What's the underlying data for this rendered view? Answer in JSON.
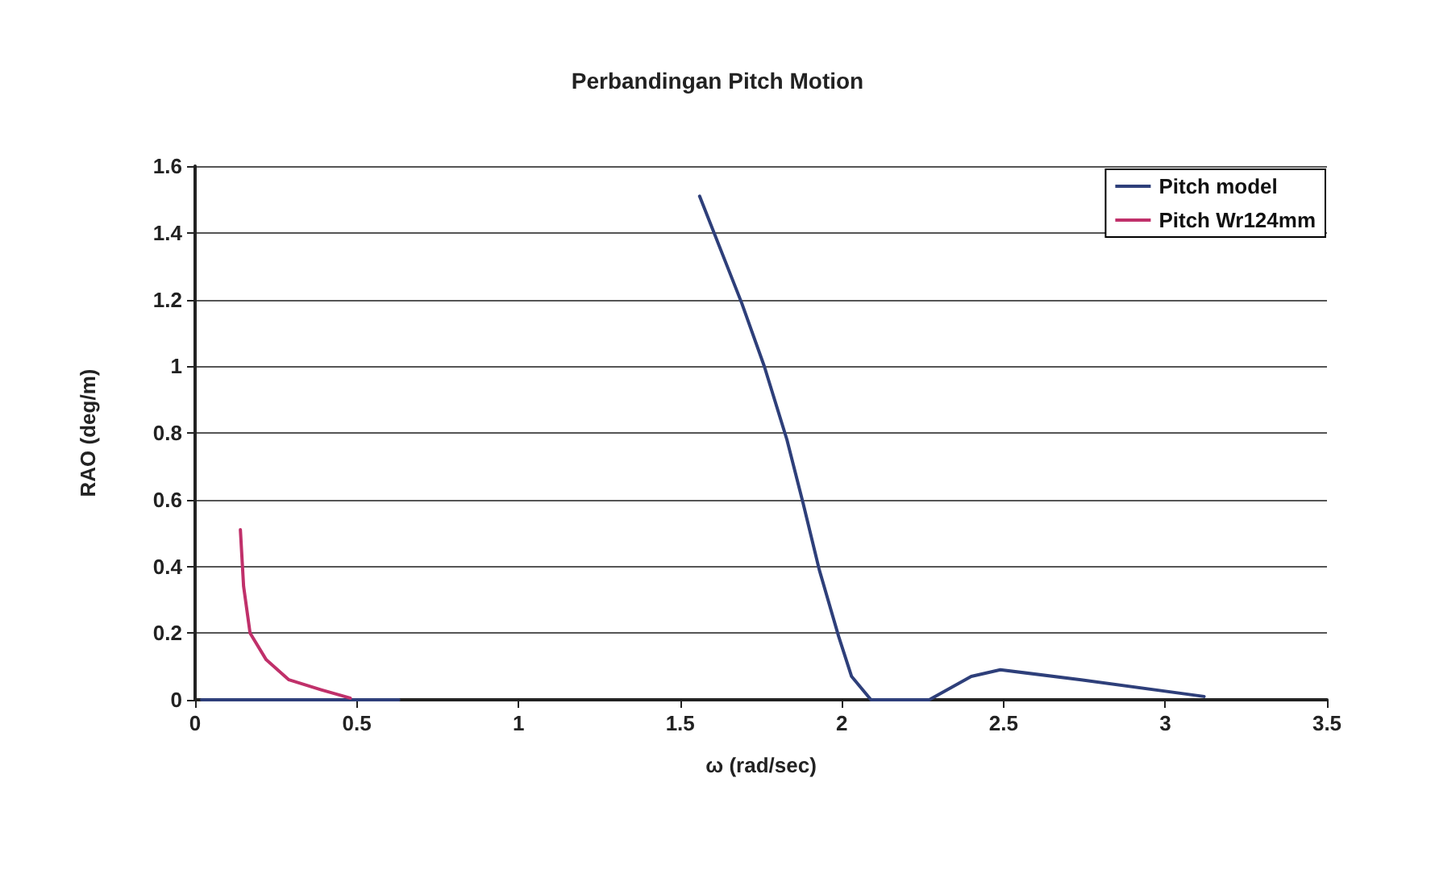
{
  "chart_data": {
    "type": "line",
    "title": "Perbandingan Pitch Motion",
    "xlabel": "ω (rad/sec)",
    "ylabel": "RAO (deg/m)",
    "xlim": [
      0,
      3.5
    ],
    "xticks": [
      0,
      0.5,
      1,
      1.5,
      2,
      2.5,
      3,
      3.5
    ],
    "ylim": [
      0,
      1.6
    ],
    "yticks": [
      0,
      0.2,
      0.4,
      0.6,
      0.8,
      1,
      1.2,
      1.4,
      1.6
    ],
    "grid": "y",
    "legend": "top right",
    "marker": "none",
    "line_style": "solid",
    "series": [
      {
        "name": "Pitch model",
        "color": "#2e3f7a",
        "x": [
          0.02,
          0.63,
          1.1,
          1.56,
          1.69,
          1.76,
          1.83,
          1.88,
          1.93,
          1.99,
          2.03,
          2.09,
          2.27,
          2.4,
          2.49,
          2.74,
          3.12
        ],
        "values": [
          0,
          0,
          null,
          1.51,
          1.19,
          1.0,
          0.78,
          0.59,
          0.39,
          0.19,
          0.07,
          0,
          0,
          0.07,
          0.09,
          0.06,
          0.01
        ]
      },
      {
        "name": "Pitch Wr124mm",
        "color": "#c0306a",
        "x": [
          0.14,
          0.15,
          0.17,
          0.22,
          0.29,
          0.39,
          0.48
        ],
        "values": [
          0.51,
          0.34,
          0.2,
          0.12,
          0.06,
          0.03,
          0.005
        ]
      }
    ]
  }
}
